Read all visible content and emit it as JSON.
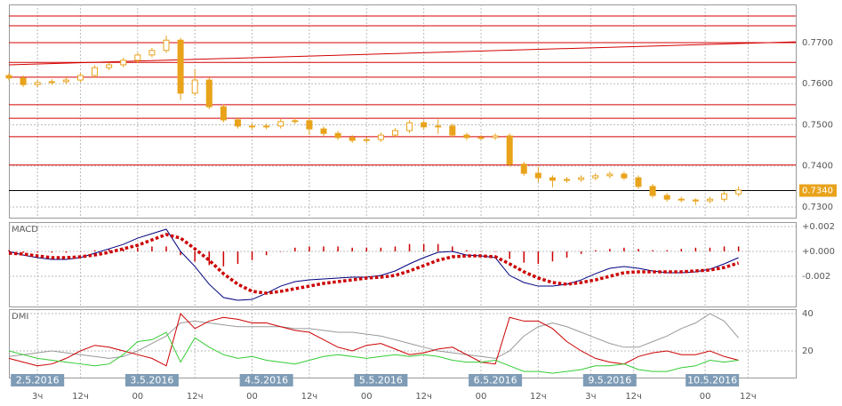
{
  "chart_data": [
    {
      "type": "candlestick",
      "x": [
        -3,
        0,
        3,
        6,
        9,
        12,
        15,
        18,
        21,
        24,
        27,
        30,
        33,
        36,
        39,
        42,
        45,
        48,
        51,
        54,
        57,
        60,
        63,
        66,
        69,
        72,
        75,
        78,
        81,
        84,
        87,
        90,
        93,
        96,
        99,
        102,
        105,
        108,
        111,
        114,
        117,
        120,
        123,
        126,
        129,
        132,
        135,
        138,
        141,
        144,
        147,
        150
      ],
      "open": [
        0.762,
        0.7614,
        0.7598,
        0.7603,
        0.7605,
        0.7609,
        0.762,
        0.7639,
        0.7646,
        0.7657,
        0.767,
        0.7681,
        0.7706,
        0.7577,
        0.7609,
        0.7544,
        0.7512,
        0.7497,
        0.7495,
        0.7497,
        0.7508,
        0.751,
        0.749,
        0.7479,
        0.7469,
        0.7462,
        0.7464,
        0.7475,
        0.7486,
        0.7505,
        0.7495,
        0.7497,
        0.7475,
        0.7469,
        0.7469,
        0.7473,
        0.7404,
        0.7382,
        0.7371,
        0.7365,
        0.7367,
        0.7371,
        0.7376,
        0.738,
        0.7371,
        0.735,
        0.7328,
        0.7319,
        0.7317,
        0.7315,
        0.7319,
        0.7332
      ],
      "high": [
        0.7626,
        0.762,
        0.7609,
        0.7611,
        0.7615,
        0.7626,
        0.7645,
        0.7652,
        0.7663,
        0.7676,
        0.7687,
        0.7717,
        0.7712,
        0.7635,
        0.7615,
        0.755,
        0.7518,
        0.7503,
        0.7503,
        0.7514,
        0.7516,
        0.7516,
        0.7496,
        0.7485,
        0.7475,
        0.747,
        0.7481,
        0.7492,
        0.7511,
        0.7511,
        0.7513,
        0.7503,
        0.7481,
        0.7475,
        0.7479,
        0.7479,
        0.741,
        0.7398,
        0.7377,
        0.7373,
        0.7377,
        0.7382,
        0.7386,
        0.7386,
        0.7377,
        0.7356,
        0.7334,
        0.7325,
        0.7321,
        0.7325,
        0.7338,
        0.735
      ],
      "low": [
        0.7608,
        0.7592,
        0.7592,
        0.7597,
        0.7599,
        0.7603,
        0.7614,
        0.7633,
        0.764,
        0.7651,
        0.7664,
        0.7675,
        0.756,
        0.7571,
        0.7538,
        0.7506,
        0.7491,
        0.7489,
        0.7489,
        0.7491,
        0.7502,
        0.7475,
        0.7473,
        0.7463,
        0.7456,
        0.7456,
        0.7458,
        0.7469,
        0.748,
        0.7489,
        0.7478,
        0.7469,
        0.7463,
        0.7463,
        0.7463,
        0.7398,
        0.7376,
        0.736,
        0.7348,
        0.7359,
        0.7361,
        0.7365,
        0.737,
        0.7365,
        0.7344,
        0.7322,
        0.7313,
        0.7311,
        0.7305,
        0.7309,
        0.7313,
        0.7326
      ],
      "close": [
        0.7614,
        0.7598,
        0.7603,
        0.7605,
        0.7609,
        0.762,
        0.7639,
        0.7646,
        0.7657,
        0.767,
        0.7681,
        0.7706,
        0.7577,
        0.7609,
        0.7544,
        0.7512,
        0.7497,
        0.7495,
        0.7497,
        0.7508,
        0.751,
        0.749,
        0.7479,
        0.7469,
        0.7462,
        0.7464,
        0.7475,
        0.7486,
        0.7505,
        0.7495,
        0.7497,
        0.7475,
        0.7469,
        0.7469,
        0.7473,
        0.7404,
        0.7382,
        0.7371,
        0.7365,
        0.7367,
        0.7371,
        0.7376,
        0.738,
        0.7371,
        0.735,
        0.7328,
        0.7319,
        0.7317,
        0.7315,
        0.7319,
        0.7332,
        0.7341
      ],
      "color": "#e9a31b",
      "xlim": [
        -3,
        162
      ],
      "ylim": [
        0.7274,
        0.7793
      ],
      "yticks": [
        {
          "value": 0.73,
          "label": "0.7300"
        },
        {
          "value": 0.74,
          "label": "0.7400"
        },
        {
          "value": 0.75,
          "label": "0.7500"
        },
        {
          "value": 0.76,
          "label": "0.7600"
        },
        {
          "value": 0.77,
          "label": "0.7700"
        }
      ],
      "levels": [
        0.7765,
        0.7741,
        0.77,
        0.7652,
        0.7616,
        0.7549,
        0.7516,
        0.7471,
        0.7402
      ],
      "level_color": "#d40000",
      "trend_line": {
        "x": [
          -3,
          162
        ],
        "y": [
          0.7646,
          0.7702
        ]
      },
      "last": {
        "value": 0.734,
        "label": "0.7340"
      }
    },
    {
      "type": "macd",
      "title": "MACD",
      "ylim": [
        -0.00443,
        0.00236
      ],
      "yticks": [
        {
          "value": 0.002,
          "label": "+0.002"
        },
        {
          "value": 0,
          "label": "+0.000"
        },
        {
          "value": -0.002,
          "label": "-0.002"
        }
      ],
      "series": [
        {
          "color": "#000080",
          "values": [
            0,
            -0.00029,
            -0.0005,
            -0.00064,
            -0.00064,
            -0.0005,
            -0.00014,
            0.00021,
            0.00057,
            0.00107,
            0.00143,
            0.00179,
            0,
            -0.00121,
            -0.00264,
            -0.00371,
            -0.00393,
            -0.00386,
            -0.00336,
            -0.00279,
            -0.00243,
            -0.00229,
            -0.00221,
            -0.00214,
            -0.00207,
            -0.00207,
            -0.00193,
            -0.00157,
            -0.001,
            -0.0005,
            -7e-05,
            0,
            -0.00029,
            -0.00036,
            -0.0005,
            -0.00193,
            -0.0025,
            -0.00279,
            -0.00279,
            -0.00264,
            -0.00229,
            -0.00179,
            -0.00136,
            -0.00121,
            -0.00136,
            -0.00157,
            -0.00171,
            -0.00171,
            -0.00164,
            -0.00143,
            -0.001,
            -0.0005
          ]
        },
        {
          "color": "#cc0000",
          "dotted": true,
          "values": [
            -0.00014,
            -0.00021,
            -0.00036,
            -0.0005,
            -0.0005,
            -0.00043,
            -0.00029,
            -7e-05,
            0.00021,
            0.0005,
            0.00093,
            0.00136,
            0.00107,
            0.00021,
            -0.00071,
            -0.00179,
            -0.00264,
            -0.00321,
            -0.00336,
            -0.00321,
            -0.003,
            -0.00279,
            -0.00257,
            -0.00243,
            -0.00229,
            -0.00214,
            -0.00207,
            -0.00193,
            -0.00157,
            -0.00114,
            -0.00071,
            -0.00043,
            -0.00036,
            -0.00036,
            -0.00043,
            -0.001,
            -0.00164,
            -0.00214,
            -0.0025,
            -0.00264,
            -0.0025,
            -0.00229,
            -0.002,
            -0.00171,
            -0.00164,
            -0.00164,
            -0.00164,
            -0.00164,
            -0.00157,
            -0.0015,
            -0.00129,
            -0.00093
          ]
        }
      ],
      "histogram": {
        "color": "#cc0000",
        "values": [
          0.0001,
          -0.0001,
          -0.0001,
          -0.0001,
          -0.0001,
          0,
          0.0001,
          0.0002,
          0.0002,
          0.0003,
          0.0004,
          0.0004,
          -0.0003,
          -0.0008,
          -0.0011,
          -0.0012,
          -0.001,
          -0.0007,
          -0.0003,
          0,
          0.0003,
          0.0004,
          0.0004,
          0.0004,
          0.0003,
          0.0003,
          0.0003,
          0.0004,
          0.0006,
          0.0006,
          0.0006,
          0.0004,
          0.0001,
          0,
          0,
          -0.0006,
          -0.0009,
          -0.001,
          -0.0008,
          -0.0005,
          -0.0002,
          0.0001,
          0.0002,
          0.0003,
          0.0002,
          0.0001,
          0.0001,
          0.0002,
          0.0003,
          0.0003,
          0.0004,
          0.0004
        ]
      }
    },
    {
      "type": "line",
      "title": "DMI",
      "ylim": [
        5.7,
        42.4
      ],
      "yticks": [
        40,
        20
      ],
      "series": [
        {
          "color": "#999999",
          "values": [
            17,
            18,
            19,
            20,
            19,
            18,
            17,
            16,
            17,
            20,
            24,
            28,
            35,
            36,
            35,
            34,
            33,
            33,
            33,
            33,
            32,
            32,
            31,
            30,
            30,
            29,
            28,
            26,
            24,
            22,
            20,
            19,
            18,
            17,
            16,
            20,
            28,
            33,
            35,
            33,
            30,
            27,
            24,
            22,
            22,
            25,
            28,
            32,
            35,
            40,
            36,
            27
          ]
        },
        {
          "color": "#cc0000",
          "values": [
            16,
            14,
            12,
            13,
            16,
            20,
            23,
            22,
            20,
            18,
            16,
            12,
            40,
            32,
            36,
            38,
            37,
            35,
            35,
            33,
            31,
            30,
            26,
            22,
            20,
            23,
            24,
            21,
            18,
            19,
            21,
            22,
            18,
            14,
            13,
            38,
            36,
            36,
            32,
            25,
            20,
            16,
            14,
            13,
            17,
            19,
            20,
            18,
            18,
            20,
            17,
            15
          ]
        },
        {
          "color": "#33cc33",
          "values": [
            20,
            18,
            16,
            15,
            14,
            13,
            12,
            13,
            18,
            25,
            26,
            30,
            14,
            27,
            22,
            18,
            16,
            17,
            15,
            14,
            13,
            15,
            17,
            18,
            17,
            16,
            17,
            18,
            17,
            18,
            17,
            15,
            14,
            14,
            15,
            12,
            9,
            9,
            8,
            9,
            10,
            12,
            12,
            13,
            10,
            9,
            9,
            11,
            12,
            15,
            14,
            15
          ]
        }
      ],
      "xticks": [
        {
          "value": 3,
          "label": "3ч"
        },
        {
          "value": 12,
          "label": "12ч"
        },
        {
          "value": 24,
          "label": "00"
        },
        {
          "value": 36,
          "label": "12ч"
        },
        {
          "value": 48,
          "label": "00"
        },
        {
          "value": 60,
          "label": "12ч"
        },
        {
          "value": 72,
          "label": "00"
        },
        {
          "value": 84,
          "label": "12ч"
        },
        {
          "value": 96,
          "label": "00"
        },
        {
          "value": 108,
          "label": "12ч"
        },
        {
          "value": 119,
          "label": "3ч"
        },
        {
          "value": 128,
          "label": "12ч"
        },
        {
          "value": 143,
          "label": "00"
        },
        {
          "value": 152,
          "label": "12ч"
        }
      ],
      "date_labels": [
        {
          "value": 3,
          "label": "2.5.2016"
        },
        {
          "value": 27,
          "label": "3.5.2016"
        },
        {
          "value": 51,
          "label": "4.5.2016"
        },
        {
          "value": 75,
          "label": "5.5.2016"
        },
        {
          "value": 99,
          "label": "6.5.2016"
        },
        {
          "value": 123,
          "label": "9.5.2016"
        },
        {
          "value": 144.5,
          "label": "10.5.2016"
        }
      ]
    }
  ]
}
